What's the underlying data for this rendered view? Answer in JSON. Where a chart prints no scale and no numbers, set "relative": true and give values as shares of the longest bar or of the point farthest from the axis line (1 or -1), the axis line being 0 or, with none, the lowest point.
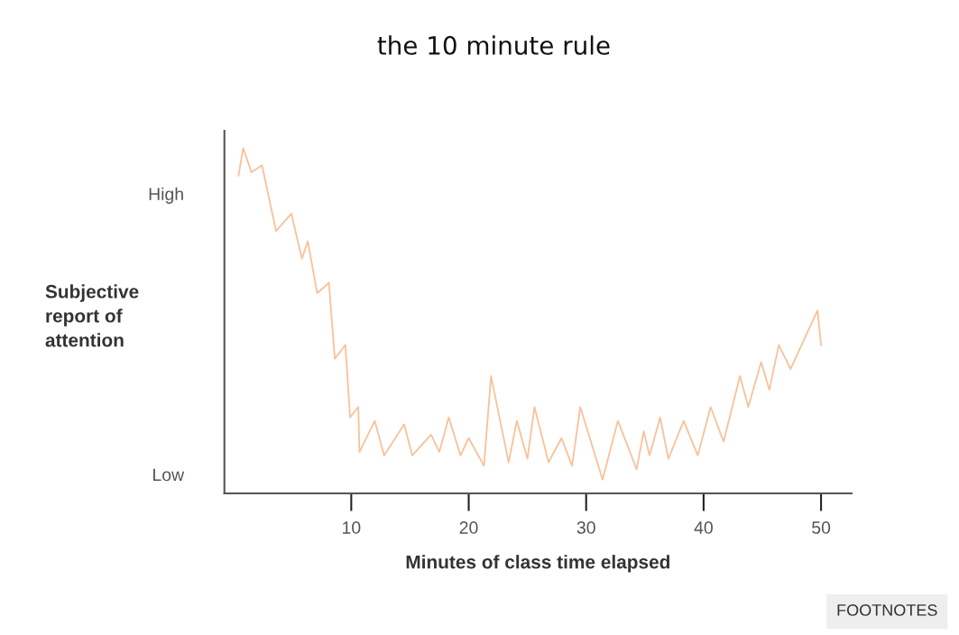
{
  "chart_data": {
    "type": "line",
    "title": "the 10 minute rule",
    "xlabel": "Minutes of class time elapsed",
    "ylabel": "Subjective\nreport of\nattention",
    "annotations": [
      "High",
      "Low",
      "FOOTNOTES"
    ],
    "relative": true,
    "xlim": [
      -0.8,
      52.6
    ],
    "xticks": [
      10,
      20,
      30,
      40,
      50
    ],
    "grid": false,
    "legend": false,
    "marker": "none",
    "line_style": "solid",
    "series": [
      {
        "color": "#f9c199",
        "x": [
          0.4,
          0.8,
          1.5,
          2.4,
          3.6,
          4.9,
          5.8,
          6.3,
          7.1,
          8.1,
          8.6,
          9.5,
          9.9,
          10.6,
          10.7,
          12.0,
          12.8,
          14.5,
          15.2,
          16.8,
          17.5,
          18.3,
          19.3,
          20.0,
          21.3,
          21.9,
          23.4,
          24.1,
          25.0,
          25.6,
          26.8,
          27.9,
          28.8,
          29.5,
          31.4,
          32.7,
          34.3,
          34.9,
          35.4,
          36.3,
          37.0,
          38.3,
          39.5,
          40.6,
          41.7,
          43.1,
          43.8,
          44.9,
          45.6,
          46.4,
          47.4,
          49.7,
          50.0
        ],
        "values": [
          0.92,
          1.0,
          0.93,
          0.95,
          0.76,
          0.81,
          0.68,
          0.73,
          0.58,
          0.61,
          0.39,
          0.43,
          0.22,
          0.25,
          0.12,
          0.21,
          0.11,
          0.2,
          0.11,
          0.17,
          0.12,
          0.22,
          0.11,
          0.16,
          0.08,
          0.34,
          0.09,
          0.21,
          0.1,
          0.25,
          0.09,
          0.16,
          0.08,
          0.25,
          0.04,
          0.21,
          0.07,
          0.18,
          0.11,
          0.22,
          0.1,
          0.21,
          0.11,
          0.25,
          0.15,
          0.34,
          0.25,
          0.38,
          0.3,
          0.43,
          0.36,
          0.53,
          0.43
        ]
      }
    ]
  }
}
